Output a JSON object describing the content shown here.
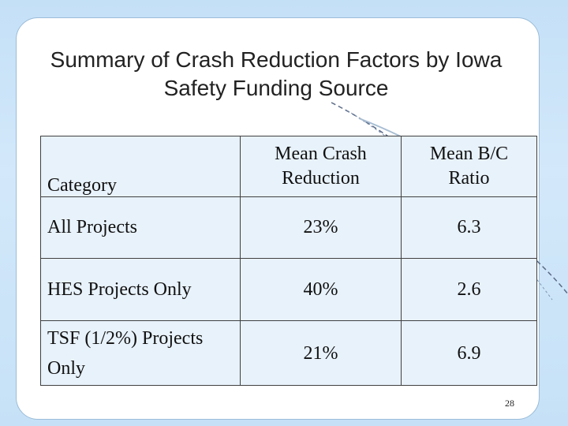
{
  "slide": {
    "title": "Summary of Crash Reduction Factors by Iowa Safety Funding Source",
    "slide_number": "28"
  },
  "table": {
    "headers": [
      "Category",
      "Mean Crash Reduction",
      "Mean B/C Ratio"
    ],
    "rows": [
      [
        "All Projects",
        "23%",
        "6.3"
      ],
      [
        "HES Projects Only",
        "40%",
        "2.6"
      ],
      [
        "TSF (1/2%) Projects Only",
        "21%",
        "6.9"
      ]
    ]
  },
  "colors": {
    "background": "#c8e2f8",
    "panel": "#ffffff",
    "table_fill": "#e8f2fb",
    "grid_lines": "#404040",
    "decor": "#5a6a86"
  }
}
